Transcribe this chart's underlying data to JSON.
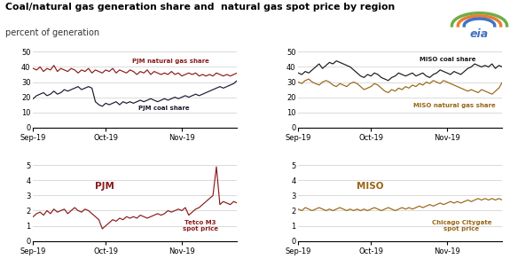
{
  "title": "Coal/natural gas generation share and  natural gas spot price by region",
  "subtitle": "percent of generation",
  "pjm_gas_share": [
    39,
    38,
    40,
    37,
    39,
    38,
    41,
    37,
    39,
    38,
    37,
    39,
    38,
    36,
    38,
    37,
    39,
    36,
    38,
    37,
    36,
    38,
    37,
    39,
    36,
    38,
    37,
    36,
    38,
    37,
    35,
    37,
    36,
    38,
    35,
    37,
    36,
    35,
    36,
    35,
    37,
    35,
    36,
    34,
    35,
    36,
    35,
    36,
    34,
    35,
    34,
    35,
    34,
    36,
    35,
    34,
    35,
    34,
    35,
    36
  ],
  "pjm_coal_share": [
    19,
    21,
    22,
    23,
    21,
    22,
    24,
    22,
    23,
    25,
    24,
    25,
    26,
    27,
    25,
    26,
    27,
    26,
    17,
    15,
    14,
    16,
    15,
    16,
    17,
    15,
    17,
    16,
    17,
    16,
    17,
    18,
    17,
    18,
    19,
    18,
    17,
    18,
    19,
    18,
    19,
    20,
    19,
    20,
    21,
    20,
    21,
    22,
    21,
    22,
    23,
    24,
    25,
    26,
    27,
    26,
    27,
    28,
    29,
    31
  ],
  "miso_coal_share": [
    36,
    35,
    37,
    36,
    38,
    40,
    42,
    39,
    41,
    43,
    42,
    44,
    43,
    42,
    41,
    40,
    38,
    36,
    34,
    33,
    35,
    34,
    36,
    35,
    33,
    32,
    31,
    33,
    34,
    36,
    35,
    34,
    35,
    36,
    34,
    35,
    36,
    34,
    33,
    35,
    36,
    38,
    37,
    36,
    35,
    37,
    36,
    35,
    37,
    39,
    40,
    42,
    41,
    40,
    41,
    40,
    42,
    39,
    41,
    40
  ],
  "miso_gas_share": [
    30,
    29,
    31,
    32,
    30,
    29,
    28,
    30,
    31,
    30,
    28,
    27,
    29,
    28,
    27,
    29,
    30,
    29,
    27,
    25,
    26,
    27,
    29,
    28,
    26,
    24,
    23,
    25,
    24,
    26,
    25,
    27,
    26,
    28,
    27,
    29,
    28,
    30,
    29,
    31,
    30,
    29,
    31,
    30,
    29,
    28,
    27,
    26,
    25,
    24,
    25,
    24,
    23,
    25,
    24,
    23,
    22,
    24,
    26,
    30
  ],
  "pjm_spot": [
    1.6,
    1.8,
    1.9,
    1.7,
    2.0,
    1.8,
    2.1,
    1.9,
    2.0,
    2.1,
    1.8,
    2.0,
    2.2,
    2.0,
    1.9,
    2.1,
    2.0,
    1.8,
    1.6,
    1.4,
    0.8,
    1.0,
    1.2,
    1.4,
    1.3,
    1.5,
    1.4,
    1.6,
    1.5,
    1.6,
    1.5,
    1.7,
    1.6,
    1.5,
    1.6,
    1.7,
    1.8,
    1.7,
    1.8,
    2.0,
    1.9,
    2.0,
    2.1,
    2.0,
    2.2,
    1.7,
    1.9,
    2.1,
    2.2,
    2.4,
    2.6,
    2.8,
    3.0,
    4.9,
    2.4,
    2.6,
    2.5,
    2.4,
    2.6,
    2.5
  ],
  "chicago_spot": [
    2.1,
    2.0,
    2.2,
    2.1,
    2.0,
    2.1,
    2.2,
    2.1,
    2.0,
    2.1,
    2.0,
    2.1,
    2.2,
    2.1,
    2.0,
    2.1,
    2.0,
    2.1,
    2.0,
    2.1,
    2.0,
    2.1,
    2.2,
    2.1,
    2.0,
    2.1,
    2.2,
    2.1,
    2.0,
    2.1,
    2.2,
    2.1,
    2.2,
    2.1,
    2.2,
    2.3,
    2.2,
    2.3,
    2.4,
    2.3,
    2.4,
    2.5,
    2.4,
    2.5,
    2.6,
    2.5,
    2.6,
    2.5,
    2.6,
    2.7,
    2.6,
    2.7,
    2.8,
    2.7,
    2.8,
    2.7,
    2.8,
    2.7,
    2.8,
    2.7
  ],
  "n_points": 60,
  "pjm_gas_color": "#8B1A1A",
  "pjm_coal_color": "#1a1a2e",
  "miso_coal_color": "#1a1a1a",
  "miso_gas_color": "#996515",
  "pjm_spot_color": "#8B1A1A",
  "chicago_spot_color": "#996515",
  "share_ylim": [
    0,
    50
  ],
  "spot_ylim": [
    0,
    5
  ],
  "share_yticks": [
    0,
    10,
    20,
    30,
    40,
    50
  ],
  "spot_yticks": [
    0,
    1,
    2,
    3,
    4,
    5
  ],
  "xtick_positions": [
    0,
    21,
    43
  ],
  "xtick_labels": [
    "Sep-19",
    "Oct-19",
    "Nov-19"
  ],
  "bg_color": "#f5f5f0"
}
